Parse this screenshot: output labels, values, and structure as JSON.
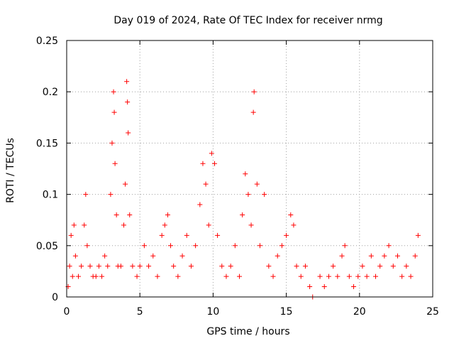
{
  "chart_data": {
    "type": "scatter",
    "title": "Day 019 of 2024, Rate Of TEC Index for receiver nrmg",
    "xlabel": "GPS time / hours",
    "ylabel": "ROTI / TECUs",
    "xlim": [
      0,
      25
    ],
    "ylim": [
      0,
      0.25
    ],
    "xticks": [
      0,
      5,
      10,
      15,
      20,
      25
    ],
    "yticks": [
      0,
      0.05,
      0.1,
      0.15,
      0.2,
      0.25
    ],
    "xtick_labels": [
      "0",
      "5",
      "10",
      "15",
      "20",
      "25"
    ],
    "ytick_labels": [
      "0",
      "0.05",
      "0.1",
      "0.15",
      "0.2",
      "0.25"
    ],
    "grid": true,
    "marker": "+",
    "color": "#ff0000",
    "series": [
      {
        "name": "ROTI",
        "x": [
          0.1,
          0.2,
          0.3,
          0.4,
          0.5,
          0.6,
          0.8,
          1.0,
          1.2,
          1.3,
          1.4,
          1.6,
          1.8,
          2.0,
          2.2,
          2.4,
          2.6,
          2.8,
          3.0,
          3.1,
          3.2,
          3.25,
          3.3,
          3.4,
          3.5,
          3.7,
          3.9,
          4.0,
          4.1,
          4.15,
          4.2,
          4.3,
          4.5,
          4.8,
          5.0,
          5.3,
          5.6,
          5.9,
          6.2,
          6.5,
          6.7,
          6.9,
          7.1,
          7.3,
          7.6,
          7.9,
          8.2,
          8.5,
          8.8,
          9.1,
          9.3,
          9.5,
          9.7,
          9.9,
          10.1,
          10.3,
          10.6,
          10.9,
          11.2,
          11.5,
          11.8,
          12.0,
          12.2,
          12.4,
          12.6,
          12.75,
          12.8,
          13.0,
          13.2,
          13.5,
          13.8,
          14.1,
          14.4,
          14.7,
          15.0,
          15.3,
          15.5,
          15.7,
          16.0,
          16.3,
          16.6,
          16.8,
          17.3,
          17.6,
          17.9,
          18.2,
          18.5,
          18.8,
          19.0,
          19.3,
          19.6,
          19.9,
          20.2,
          20.5,
          20.8,
          21.1,
          21.4,
          21.7,
          22.0,
          22.3,
          22.6,
          22.9,
          23.2,
          23.5,
          23.8,
          24.0
        ],
        "y": [
          0.01,
          0.03,
          0.06,
          0.02,
          0.07,
          0.04,
          0.02,
          0.03,
          0.07,
          0.1,
          0.05,
          0.03,
          0.02,
          0.02,
          0.03,
          0.02,
          0.04,
          0.03,
          0.1,
          0.15,
          0.2,
          0.18,
          0.13,
          0.08,
          0.03,
          0.03,
          0.07,
          0.11,
          0.21,
          0.19,
          0.16,
          0.08,
          0.03,
          0.02,
          0.03,
          0.05,
          0.03,
          0.04,
          0.02,
          0.06,
          0.07,
          0.08,
          0.05,
          0.03,
          0.02,
          0.04,
          0.06,
          0.03,
          0.05,
          0.09,
          0.13,
          0.11,
          0.07,
          0.14,
          0.13,
          0.06,
          0.03,
          0.02,
          0.03,
          0.05,
          0.02,
          0.08,
          0.12,
          0.1,
          0.07,
          0.18,
          0.2,
          0.11,
          0.05,
          0.1,
          0.03,
          0.02,
          0.04,
          0.05,
          0.06,
          0.08,
          0.07,
          0.03,
          0.02,
          0.03,
          0.01,
          0.0,
          0.02,
          0.01,
          0.02,
          0.03,
          0.02,
          0.04,
          0.05,
          0.02,
          0.01,
          0.02,
          0.03,
          0.02,
          0.04,
          0.02,
          0.03,
          0.04,
          0.05,
          0.03,
          0.04,
          0.02,
          0.03,
          0.02,
          0.04,
          0.06
        ]
      }
    ]
  }
}
